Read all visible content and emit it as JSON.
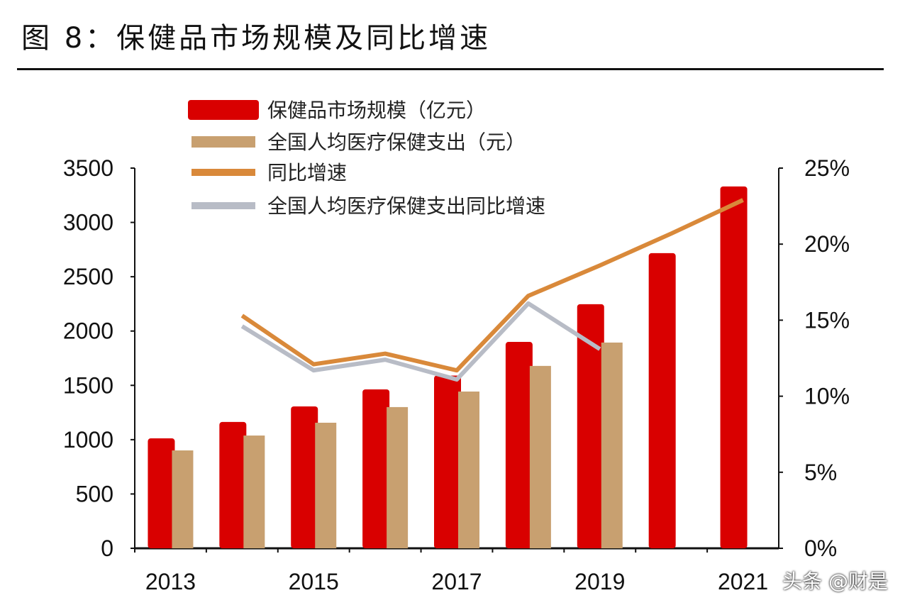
{
  "title": "图 8：保健品市场规模及同比增速",
  "watermark": "头条 @财是",
  "chart_data": {
    "type": "bar",
    "categories": [
      "2013",
      "2014",
      "2015",
      "2016",
      "2017",
      "2018",
      "2019",
      "2020",
      "2021"
    ],
    "x_tick_labels": [
      "2013",
      "2015",
      "2017",
      "2019",
      "2021"
    ],
    "left_axis": {
      "ylim": [
        0,
        3500
      ],
      "ticks": [
        0,
        500,
        1000,
        1500,
        2000,
        2500,
        3000,
        3500
      ]
    },
    "right_axis": {
      "ylim": [
        0,
        25
      ],
      "ticks": [
        "0%",
        "5%",
        "10%",
        "15%",
        "20%",
        "25%"
      ]
    },
    "grid": false,
    "legend_placement": "top-center",
    "series": [
      {
        "name": "保健品市场规模（亿元）",
        "kind": "bar",
        "axis": "left",
        "color": "#d90000",
        "values": [
          1012,
          1163,
          1306,
          1463,
          1590,
          1900,
          2247,
          2717,
          3331
        ]
      },
      {
        "name": "全国人均医疗保健支出（元）",
        "kind": "bar",
        "axis": "left",
        "color": "#c8a070",
        "values": [
          901,
          1038,
          1156,
          1300,
          1443,
          1679,
          1894,
          null,
          null
        ]
      },
      {
        "name": "同比增速",
        "kind": "line",
        "axis": "right",
        "color": "#d9893a",
        "values": [
          null,
          15.3,
          12.1,
          12.8,
          11.7,
          16.6,
          18.6,
          20.7,
          22.9
        ]
      },
      {
        "name": "全国人均医疗保健支出同比增速",
        "kind": "line",
        "axis": "right",
        "color": "#b8bcc6",
        "values": [
          null,
          14.6,
          11.7,
          12.4,
          11.1,
          16.1,
          13.1,
          null,
          null
        ]
      }
    ]
  }
}
